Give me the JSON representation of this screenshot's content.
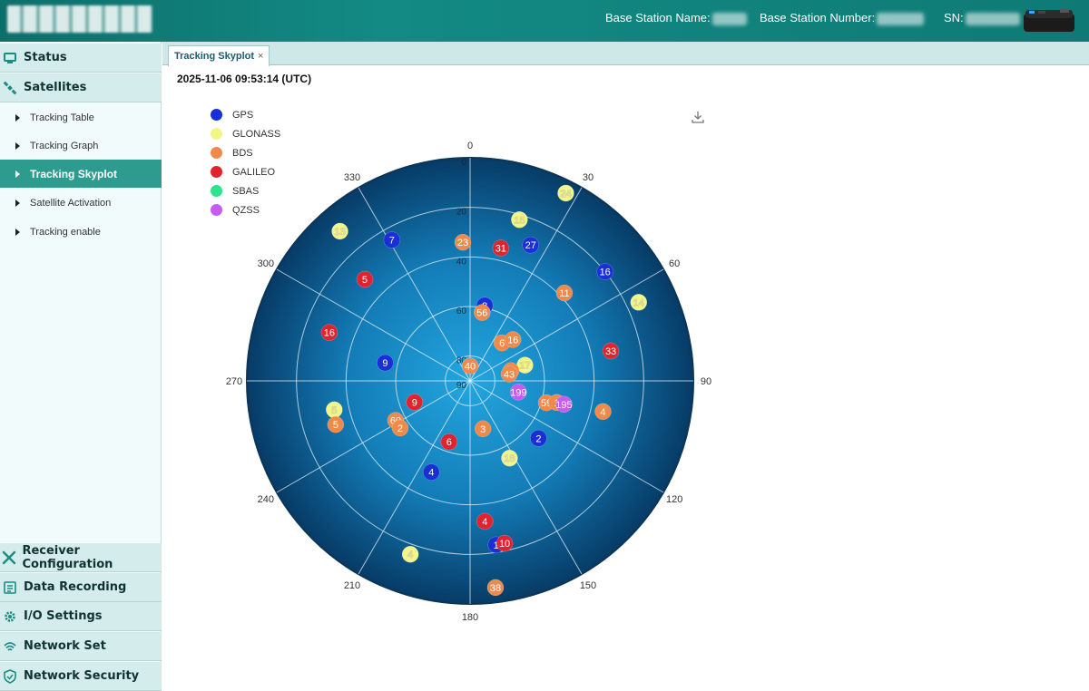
{
  "header": {
    "base_station_name_label": "Base Station Name:",
    "base_station_number_label": "Base Station Number:",
    "sn_label": "SN:"
  },
  "sidebar": {
    "top_items": [
      {
        "label": "Status",
        "icon": "monitor-icon"
      },
      {
        "label": "Satellites",
        "icon": "satellite-icon"
      }
    ],
    "sub_items": [
      {
        "label": "Tracking Table"
      },
      {
        "label": "Tracking Graph"
      },
      {
        "label": "Tracking Skyplot",
        "active": true
      },
      {
        "label": "Satellite Activation"
      },
      {
        "label": "Tracking enable"
      }
    ],
    "bottom_items": [
      {
        "label": "Receiver Configuration",
        "icon": "tools-icon"
      },
      {
        "label": "Data Recording",
        "icon": "database-icon"
      },
      {
        "label": "I/O Settings",
        "icon": "gear-icon"
      },
      {
        "label": "Network Set",
        "icon": "wifi-icon"
      },
      {
        "label": "Network Security",
        "icon": "shield-icon"
      }
    ]
  },
  "tab": {
    "label": "Tracking Skyplot",
    "close": "×"
  },
  "timestamp": "2025-11-06 09:53:14 (UTC)",
  "legend": [
    {
      "name": "GPS",
      "color": "#1a2fd6"
    },
    {
      "name": "GLONASS",
      "color": "#f1f58a"
    },
    {
      "name": "BDS",
      "color": "#ef8a4a"
    },
    {
      "name": "GALILEO",
      "color": "#e0242f"
    },
    {
      "name": "SBAS",
      "color": "#2ee38f"
    },
    {
      "name": "QZSS",
      "color": "#c65cf0"
    }
  ],
  "chart_data": {
    "type": "scatter",
    "polar": true,
    "azimuth_ticks": [
      "0",
      "30",
      "60",
      "90",
      "120",
      "150",
      "180",
      "210",
      "240",
      "270",
      "300",
      "330"
    ],
    "elevation_ticks": [
      "0",
      "20",
      "40",
      "60",
      "80",
      "90"
    ],
    "grid": true,
    "satellites": [
      {
        "system": "GPS",
        "prn": "7",
        "azimuth": 331,
        "elevation": 25
      },
      {
        "system": "GPS",
        "prn": "27",
        "azimuth": 24,
        "elevation": 30
      },
      {
        "system": "GPS",
        "prn": "16",
        "azimuth": 51,
        "elevation": 20
      },
      {
        "system": "GPS",
        "prn": "8",
        "azimuth": 11,
        "elevation": 59
      },
      {
        "system": "GPS",
        "prn": "9",
        "azimuth": 282,
        "elevation": 55
      },
      {
        "system": "GPS",
        "prn": "2",
        "azimuth": 130,
        "elevation": 54
      },
      {
        "system": "GPS",
        "prn": "4",
        "azimuth": 203,
        "elevation": 50
      },
      {
        "system": "GPS",
        "prn": "1",
        "azimuth": 171,
        "elevation": 23
      },
      {
        "system": "GLONASS",
        "prn": "13",
        "azimuth": 319,
        "elevation": 10
      },
      {
        "system": "GLONASS",
        "prn": "15",
        "azimuth": 17,
        "elevation": 22
      },
      {
        "system": "GLONASS",
        "prn": "24",
        "azimuth": 27,
        "elevation": 5
      },
      {
        "system": "GLONASS",
        "prn": "14",
        "azimuth": 65,
        "elevation": 15
      },
      {
        "system": "GLONASS",
        "prn": "17",
        "azimuth": 74,
        "elevation": 67
      },
      {
        "system": "GLONASS",
        "prn": "5",
        "azimuth": 258,
        "elevation": 34
      },
      {
        "system": "GLONASS",
        "prn": "18",
        "azimuth": 153,
        "elevation": 55
      },
      {
        "system": "GLONASS",
        "prn": "4",
        "azimuth": 199,
        "elevation": 16
      },
      {
        "system": "BDS",
        "prn": "23",
        "azimuth": 357,
        "elevation": 34
      },
      {
        "system": "BDS",
        "prn": "56",
        "azimuth": 10,
        "elevation": 62
      },
      {
        "system": "BDS",
        "prn": "11",
        "azimuth": 47,
        "elevation": 38
      },
      {
        "system": "BDS",
        "prn": "6",
        "azimuth": 40,
        "elevation": 70
      },
      {
        "system": "BDS",
        "prn": "16",
        "azimuth": 46,
        "elevation": 66
      },
      {
        "system": "BDS",
        "prn": "29",
        "azimuth": 76,
        "elevation": 73
      },
      {
        "system": "BDS",
        "prn": "43",
        "azimuth": 80,
        "elevation": 74
      },
      {
        "system": "BDS",
        "prn": "40",
        "azimuth": 0,
        "elevation": 84
      },
      {
        "system": "BDS",
        "prn": "5",
        "azimuth": 252,
        "elevation": 33
      },
      {
        "system": "BDS",
        "prn": "60",
        "azimuth": 242,
        "elevation": 56
      },
      {
        "system": "BDS",
        "prn": "2",
        "azimuth": 236,
        "elevation": 56
      },
      {
        "system": "BDS",
        "prn": "3",
        "azimuth": 165,
        "elevation": 70
      },
      {
        "system": "BDS",
        "prn": "59",
        "azimuth": 106,
        "elevation": 58
      },
      {
        "system": "BDS",
        "prn": "1",
        "azimuth": 104,
        "elevation": 54
      },
      {
        "system": "BDS",
        "prn": "4",
        "azimuth": 103,
        "elevation": 35
      },
      {
        "system": "BDS",
        "prn": "38",
        "azimuth": 173,
        "elevation": 6
      },
      {
        "system": "GALILEO",
        "prn": "31",
        "azimuth": 13,
        "elevation": 35
      },
      {
        "system": "GALILEO",
        "prn": "5",
        "azimuth": 314,
        "elevation": 31
      },
      {
        "system": "GALILEO",
        "prn": "16",
        "azimuth": 289,
        "elevation": 30
      },
      {
        "system": "GALILEO",
        "prn": "33",
        "azimuth": 78,
        "elevation": 32
      },
      {
        "system": "GALILEO",
        "prn": "9",
        "azimuth": 249,
        "elevation": 66
      },
      {
        "system": "GALILEO",
        "prn": "6",
        "azimuth": 199,
        "elevation": 64
      },
      {
        "system": "GALILEO",
        "prn": "4",
        "azimuth": 174,
        "elevation": 33
      },
      {
        "system": "GALILEO",
        "prn": "10",
        "azimuth": 168,
        "elevation": 23
      },
      {
        "system": "QZSS",
        "prn": "199",
        "azimuth": 103,
        "elevation": 70
      },
      {
        "system": "QZSS",
        "prn": "195",
        "azimuth": 104,
        "elevation": 51
      }
    ]
  }
}
